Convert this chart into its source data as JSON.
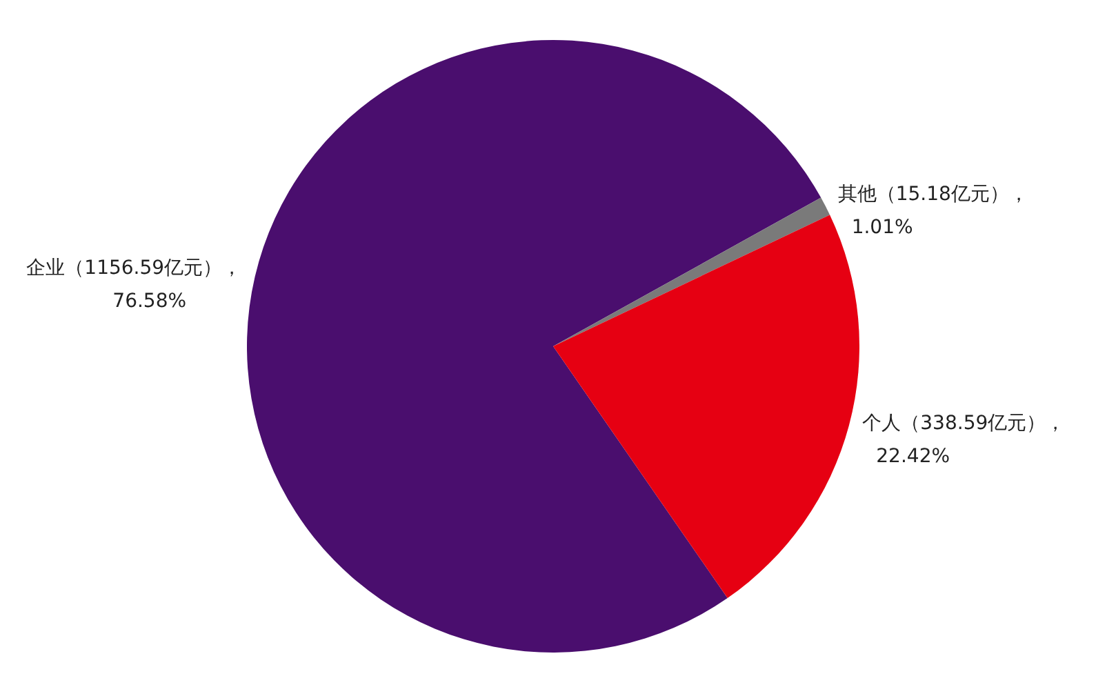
{
  "chart_data": {
    "type": "pie",
    "categories": [
      "企业",
      "其他",
      "个人"
    ],
    "values": [
      1156.59,
      15.18,
      338.59
    ],
    "colors": [
      "#4a0e6e",
      "#7a7a7a",
      "#e60012"
    ],
    "value_labels": [
      "（1156.59亿元），\n76.58%",
      "（15.18亿元），\n1.01%",
      "（338.59亿元），\n22.42%"
    ],
    "legend": false
  }
}
